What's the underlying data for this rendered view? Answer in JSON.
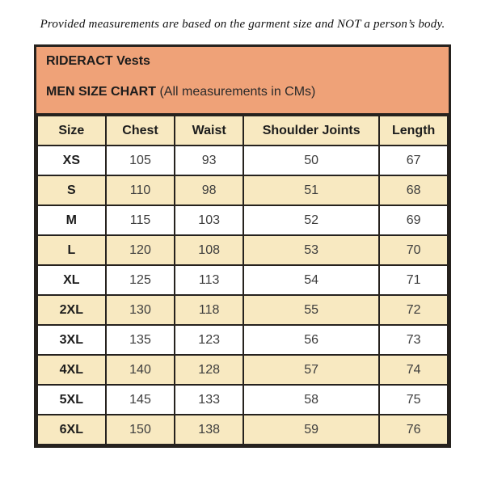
{
  "disclaimer": "Provided measurements are based on the garment size and NOT a person’s body.",
  "chart_data": {
    "type": "table",
    "title": "RIDERACT Vests",
    "subtitle": "MEN SIZE CHART",
    "subtitle_note": " (All measurements in CMs)",
    "columns": [
      "Size",
      "Chest",
      "Waist",
      "Shoulder Joints",
      "Length"
    ],
    "rows": [
      {
        "size": "XS",
        "values": [
          "105",
          "93",
          "50",
          "67"
        ]
      },
      {
        "size": "S",
        "values": [
          "110",
          "98",
          "51",
          "68"
        ]
      },
      {
        "size": "M",
        "values": [
          "115",
          "103",
          "52",
          "69"
        ]
      },
      {
        "size": "L",
        "values": [
          "120",
          "108",
          "53",
          "70"
        ]
      },
      {
        "size": "XL",
        "values": [
          "125",
          "113",
          "54",
          "71"
        ]
      },
      {
        "size": "2XL",
        "values": [
          "130",
          "118",
          "55",
          "72"
        ]
      },
      {
        "size": "3XL",
        "values": [
          "135",
          "123",
          "56",
          "73"
        ]
      },
      {
        "size": "4XL",
        "values": [
          "140",
          "128",
          "57",
          "74"
        ]
      },
      {
        "size": "5XL",
        "values": [
          "145",
          "133",
          "58",
          "75"
        ]
      },
      {
        "size": "6XL",
        "values": [
          "150",
          "138",
          "59",
          "76"
        ]
      }
    ]
  },
  "colors": {
    "banner_bg": "#efa278",
    "stripe_bg": "#f8e9c1",
    "border": "#26221e",
    "heading_text": "#1c1c1c",
    "value_text": "#3d3d3d"
  }
}
